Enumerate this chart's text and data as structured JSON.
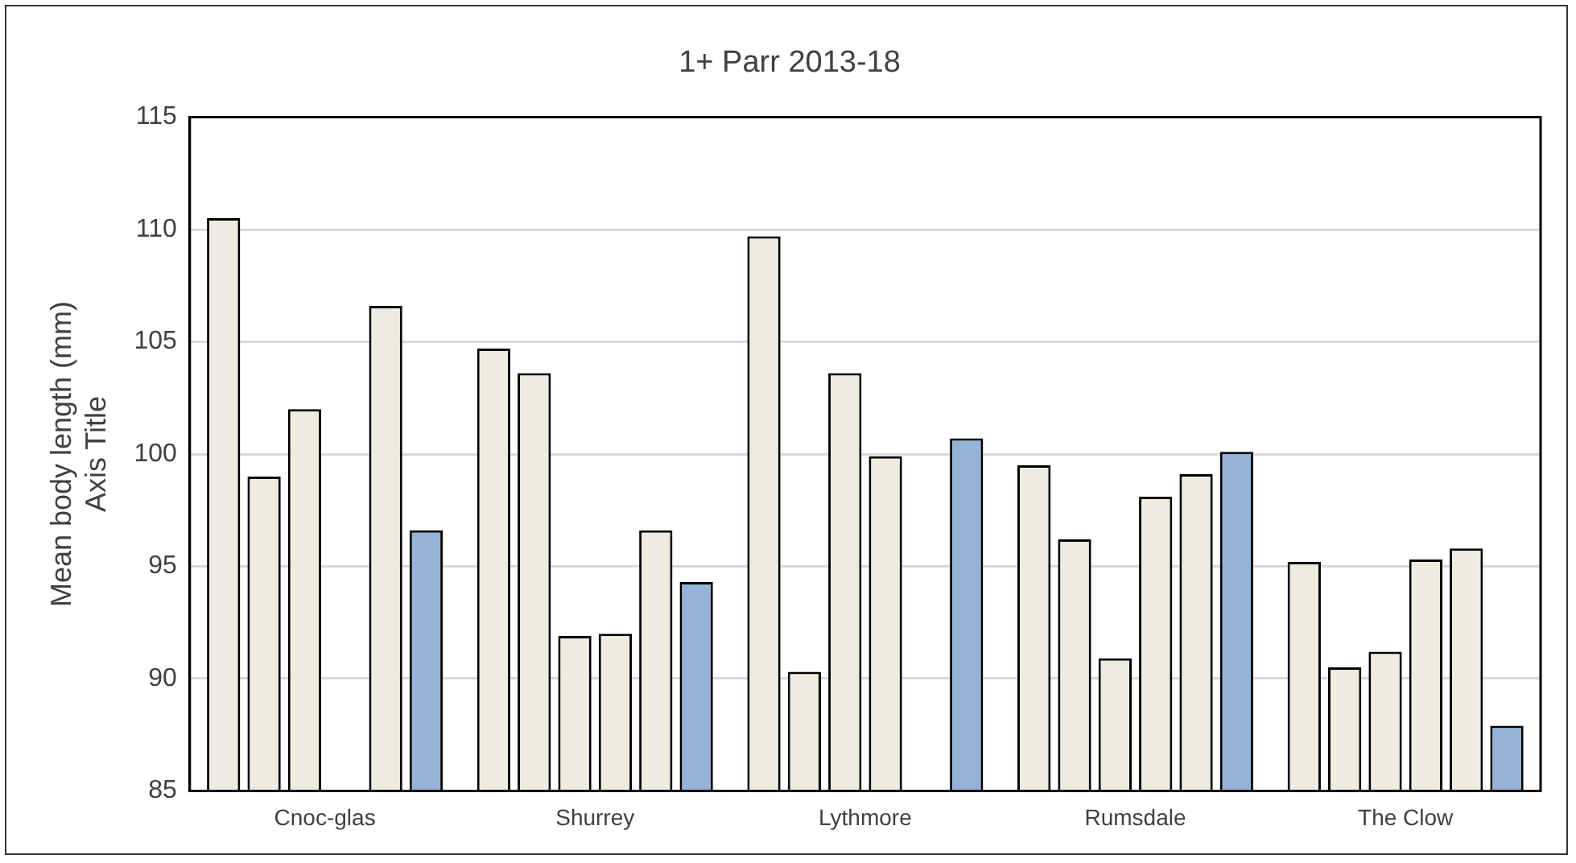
{
  "chart_data": {
    "type": "bar",
    "title": "1+ Parr 2013-18",
    "ylabel": "Mean body length (mm)\nAxis Title",
    "categories": [
      "Cnoc-glas",
      "Shurrey",
      "Lythmore",
      "Rumsdale",
      "The Clow"
    ],
    "series": [
      {
        "color": "#eeebe0",
        "values": [
          110.5,
          104.7,
          109.7,
          99.5,
          95.2
        ]
      },
      {
        "color": "#eeebe0",
        "values": [
          99.0,
          103.6,
          90.3,
          96.2,
          90.5
        ]
      },
      {
        "color": "#eeebe0",
        "values": [
          102.0,
          91.9,
          103.6,
          90.9,
          91.2
        ]
      },
      {
        "color": "#eeebe0",
        "values": [
          null,
          92.0,
          99.9,
          98.1,
          95.3
        ]
      },
      {
        "color": "#eeebe0",
        "values": [
          106.6,
          96.6,
          null,
          99.1,
          95.8
        ]
      },
      {
        "color": "#95b3d7",
        "values": [
          96.6,
          94.3,
          100.7,
          100.1,
          87.9
        ]
      }
    ],
    "ylim": [
      85,
      115
    ],
    "yticks": [
      85,
      90,
      95,
      100,
      105,
      110,
      115
    ],
    "grid": "y",
    "legend": false
  }
}
